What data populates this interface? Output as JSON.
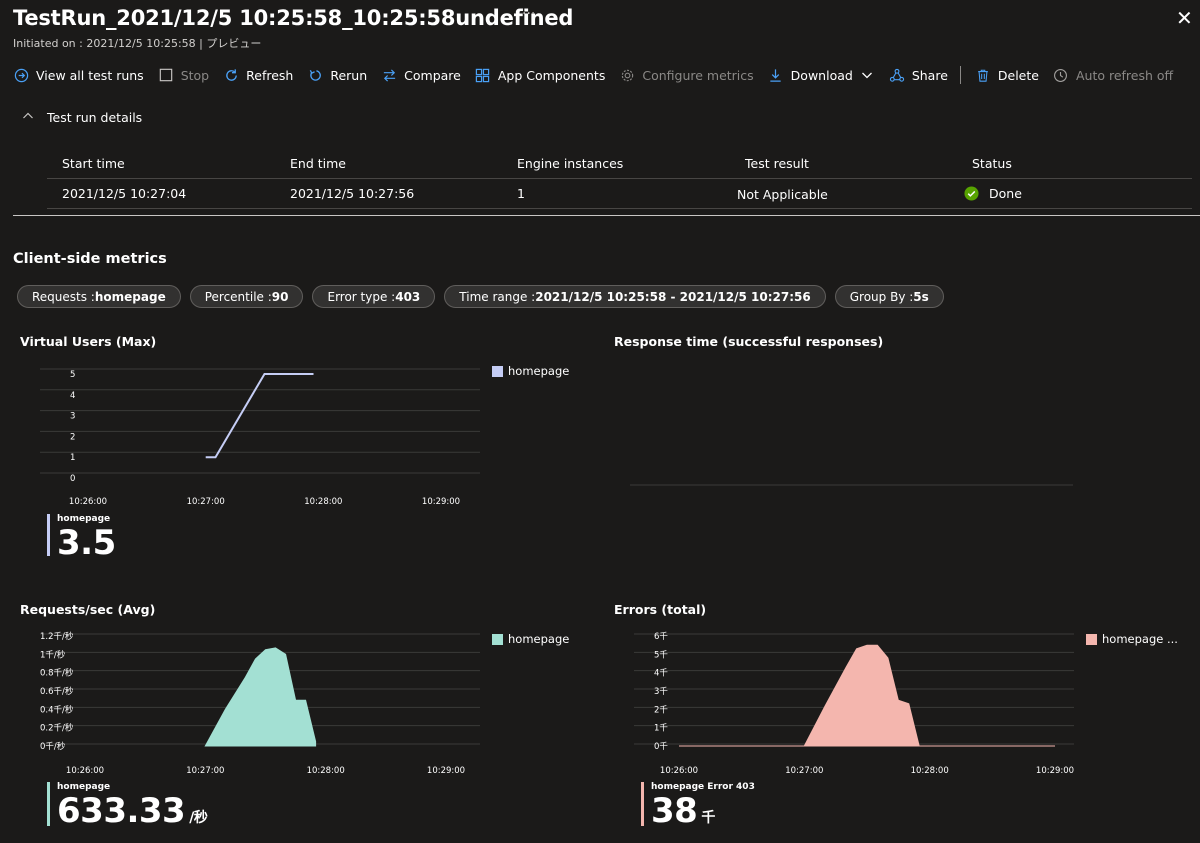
{
  "header": {
    "title": "TestRun_2021/12/5 10:25:58_10:25:58undefined",
    "more": "···",
    "close": "✕",
    "subtitle": "Initiated on : 2021/12/5 10:25:58 | プレビュー"
  },
  "toolbar": {
    "view_all": "View all test runs",
    "stop": "Stop",
    "refresh": "Refresh",
    "rerun": "Rerun",
    "compare": "Compare",
    "app_components": "App Components",
    "configure_metrics": "Configure metrics",
    "download": "Download",
    "share": "Share",
    "delete": "Delete",
    "auto_refresh": "Auto refresh off"
  },
  "details": {
    "toggle_label": "Test run details",
    "columns": [
      "Start time",
      "End time",
      "Engine instances",
      "Test result",
      "Status"
    ],
    "row": {
      "start": "2021/12/5 10:27:04",
      "end": "2021/12/5 10:27:56",
      "engines": "1",
      "result": "Not Applicable",
      "status": "Done"
    }
  },
  "metrics": {
    "title": "Client-side metrics",
    "filters": [
      {
        "label": "Requests : ",
        "value": "homepage"
      },
      {
        "label": "Percentile : ",
        "value": "90"
      },
      {
        "label": "Error type : ",
        "value": "403"
      },
      {
        "label": "Time range : ",
        "value": "2021/12/5 10:25:58 - 2021/12/5 10:27:56"
      },
      {
        "label": "Group By : ",
        "value": "5s"
      }
    ]
  },
  "colors": {
    "background": "#1b1a19",
    "virtual_users": "#c5cdf5",
    "requests": "#a3e0d3",
    "errors": "#f4b6ae",
    "status_ok": "#57a300"
  },
  "chart_data": [
    {
      "type": "line",
      "title": "Virtual Users (Max)",
      "x": [
        "10:27:00",
        "10:27:05",
        "10:27:30",
        "10:27:55"
      ],
      "series": [
        {
          "name": "homepage",
          "values": [
            1,
            1,
            5,
            5
          ]
        }
      ],
      "yticks": [
        "0",
        "1",
        "2",
        "3",
        "4",
        "5"
      ],
      "xticks": [
        "10:26:00",
        "10:27:00",
        "10:28:00",
        "10:29:00"
      ],
      "ylim": [
        0,
        5
      ],
      "legend": "right",
      "summary": {
        "label": "homepage",
        "value": "3.5",
        "unit": ""
      }
    },
    {
      "type": "line",
      "title": "Response time (successful responses)",
      "series": []
    },
    {
      "type": "area",
      "title": "Requests/sec (Avg)",
      "x": [
        "10:27:00",
        "10:27:10",
        "10:27:20",
        "10:27:25",
        "10:27:30",
        "10:27:35",
        "10:27:40",
        "10:27:45",
        "10:27:50",
        "10:27:55"
      ],
      "series": [
        {
          "name": "homepage",
          "values": [
            0,
            0.4,
            0.75,
            0.95,
            1.05,
            1.07,
            1.0,
            0.5,
            0.5,
            0.05
          ]
        }
      ],
      "yticks": [
        "0千/秒",
        "0.2千/秒",
        "0.4千/秒",
        "0.6千/秒",
        "0.8千/秒",
        "1千/秒",
        "1.2千/秒"
      ],
      "xticks": [
        "10:26:00",
        "10:27:00",
        "10:28:00",
        "10:29:00"
      ],
      "ylim": [
        0,
        1.2
      ],
      "legend": "right",
      "summary": {
        "label": "homepage",
        "value": "633.33",
        "unit": "/秒"
      }
    },
    {
      "type": "area",
      "title": "Errors (total)",
      "x": [
        "10:26:00",
        "10:27:00",
        "10:27:10",
        "10:27:20",
        "10:27:25",
        "10:27:30",
        "10:27:35",
        "10:27:40",
        "10:27:45",
        "10:27:50",
        "10:27:55",
        "10:29:00"
      ],
      "series": [
        {
          "name": "homepage ...",
          "values": [
            0,
            0,
            2.2,
            4.3,
            5.3,
            5.5,
            5.5,
            4.8,
            2.5,
            2.3,
            0,
            0
          ]
        }
      ],
      "yticks": [
        "0千",
        "1千",
        "2千",
        "3千",
        "4千",
        "5千",
        "6千"
      ],
      "xticks": [
        "10:26:00",
        "10:27:00",
        "10:28:00",
        "10:29:00"
      ],
      "ylim": [
        0,
        6
      ],
      "legend": "right",
      "summary": {
        "label": "homepage Error 403",
        "value": "38",
        "unit": "千"
      }
    }
  ]
}
